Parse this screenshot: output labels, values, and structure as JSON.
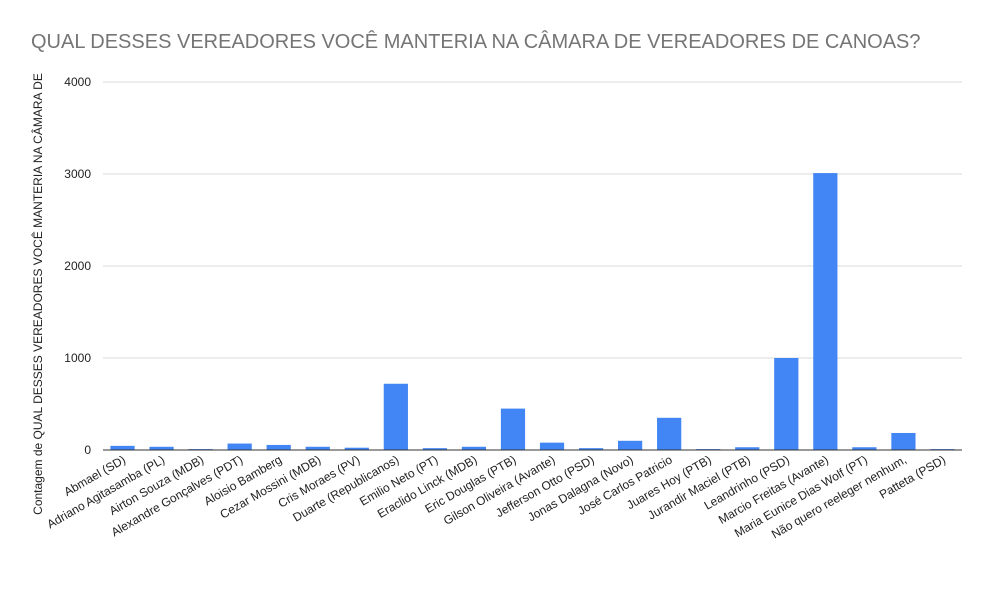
{
  "chart_data": {
    "type": "bar",
    "title": "QUAL DESSES VEREADORES VOCÊ MANTERIA NA CÂMARA DE VEREADORES DE CANOAS?",
    "ylabel": "Contagem de QUAL DESSES VEREADORES VOCÊ MANTERIA NA CÂMARA DE",
    "xlabel": "",
    "ylim": [
      0,
      4000
    ],
    "yticks": [
      0,
      1000,
      2000,
      3000,
      4000
    ],
    "grid": true,
    "bar_color": "#4285f4",
    "categories": [
      "Abmael (SD)",
      "Adriano Agitasamba (PL)",
      "Airton Souza (MDB)",
      "Alexandre Gonçalves (PDT)",
      "Aloisio Bamberg",
      "Cezar Mossini (MDB)",
      "Cris Moraes (PV)",
      "Duarte (Republicanos)",
      "Emilio Neto (PT)",
      "Eraclido Linck (MDB)",
      "Eric Douglas (PTB)",
      "Gilson Oliveira (Avante)",
      "Jefferson Otto (PSD)",
      "Jonas Dalagna (Novo)",
      "José Carlos Patricio",
      "Juares Hoy (PTB)",
      "Jurandir Maciel (PTB)",
      "Leandrinho (PSD)",
      "Marcio Freitas (Avante)",
      "Maria Eunice Dias Wolf (PT)",
      "Não quero reeleger nenhum,",
      "Patteta (PSD)"
    ],
    "values": [
      45,
      35,
      10,
      70,
      55,
      35,
      25,
      720,
      20,
      35,
      450,
      80,
      20,
      100,
      350,
      10,
      30,
      1000,
      3010,
      30,
      185,
      10
    ]
  }
}
